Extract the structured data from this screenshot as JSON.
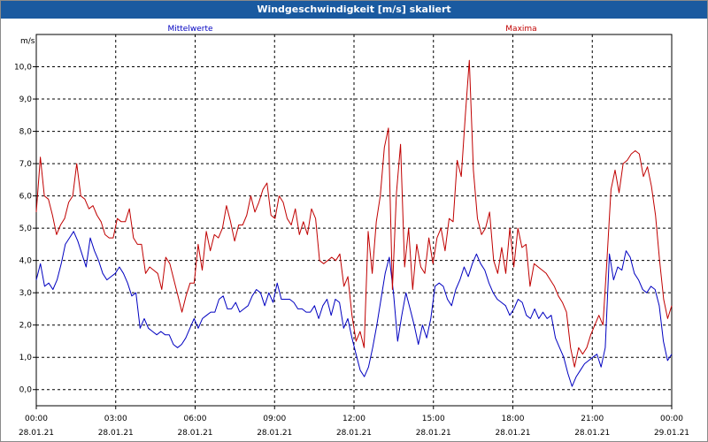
{
  "window": {
    "title": "Windgeschwindigkeit [m/s] skaliert"
  },
  "chart_data": {
    "type": "line",
    "title": "Windgeschwindigkeit [m/s] skaliert",
    "ylabel": "m/s",
    "xlabel": "",
    "ylim": [
      -0.5,
      11.0
    ],
    "xlim": [
      0,
      24
    ],
    "grid": true,
    "y_ticks": [
      0.0,
      1.0,
      2.0,
      3.0,
      4.0,
      5.0,
      6.0,
      7.0,
      8.0,
      9.0,
      10.0
    ],
    "y_tick_labels": [
      "0,0",
      "1,0",
      "2,0",
      "3,0",
      "4,0",
      "5,0",
      "6,0",
      "7,0",
      "8,0",
      "9,0",
      "10,0"
    ],
    "x_ticks": [
      {
        "hours": 0,
        "time": "00:00",
        "date": "28.01.21"
      },
      {
        "hours": 3,
        "time": "03:00",
        "date": "28.01.21"
      },
      {
        "hours": 6,
        "time": "06:00",
        "date": "28.01.21"
      },
      {
        "hours": 9,
        "time": "09:00",
        "date": "28.01.21"
      },
      {
        "hours": 12,
        "time": "12:00",
        "date": "28.01.21"
      },
      {
        "hours": 15,
        "time": "15:00",
        "date": "28.01.21"
      },
      {
        "hours": 18,
        "time": "18:00",
        "date": "28.01.21"
      },
      {
        "hours": 21,
        "time": "21:00",
        "date": "28.01.21"
      },
      {
        "hours": 24,
        "time": "00:00",
        "date": "29.01.21"
      }
    ],
    "series": [
      {
        "name": "Mittelwerte",
        "color": "#0000c0",
        "values": [
          3.4,
          3.9,
          3.2,
          3.3,
          3.1,
          3.4,
          3.9,
          4.5,
          4.7,
          4.9,
          4.6,
          4.2,
          3.8,
          4.7,
          4.3,
          4.0,
          3.6,
          3.4,
          3.5,
          3.6,
          3.8,
          3.6,
          3.3,
          2.9,
          3.0,
          1.9,
          2.2,
          1.9,
          1.8,
          1.7,
          1.8,
          1.7,
          1.7,
          1.4,
          1.3,
          1.4,
          1.6,
          1.9,
          2.2,
          1.9,
          2.2,
          2.3,
          2.4,
          2.4,
          2.8,
          2.9,
          2.5,
          2.5,
          2.7,
          2.4,
          2.5,
          2.6,
          2.9,
          3.1,
          3.0,
          2.6,
          3.0,
          2.7,
          3.3,
          2.8,
          2.8,
          2.8,
          2.7,
          2.5,
          2.5,
          2.4,
          2.4,
          2.6,
          2.2,
          2.6,
          2.8,
          2.3,
          2.8,
          2.7,
          1.9,
          2.2,
          1.6,
          1.1,
          0.6,
          0.4,
          0.7,
          1.3,
          2.0,
          2.8,
          3.6,
          4.1,
          3.0,
          1.5,
          2.3,
          3.0,
          2.5,
          2.0,
          1.4,
          2.0,
          1.6,
          2.2,
          3.2,
          3.3,
          3.2,
          2.8,
          2.6,
          3.1,
          3.4,
          3.8,
          3.5,
          3.9,
          4.2,
          3.9,
          3.7,
          3.3,
          3.0,
          2.8,
          2.7,
          2.6,
          2.3,
          2.5,
          2.8,
          2.7,
          2.3,
          2.2,
          2.5,
          2.2,
          2.4,
          2.2,
          2.3,
          1.6,
          1.3,
          1.0,
          0.5,
          0.1,
          0.4,
          0.6,
          0.8,
          0.9,
          1.0,
          1.1,
          0.7,
          1.3,
          4.2,
          3.4,
          3.8,
          3.7,
          4.3,
          4.1,
          3.6,
          3.4,
          3.1,
          3.0,
          3.2,
          3.1,
          2.6,
          1.5,
          0.9,
          1.1
        ]
      },
      {
        "name": "Maxima",
        "color": "#c00000",
        "values": [
          5.5,
          7.2,
          6.0,
          5.9,
          5.4,
          4.8,
          5.1,
          5.3,
          5.8,
          6.0,
          7.0,
          6.0,
          5.9,
          5.6,
          5.7,
          5.4,
          5.2,
          4.8,
          4.7,
          4.7,
          5.3,
          5.2,
          5.2,
          5.6,
          4.7,
          4.5,
          4.5,
          3.6,
          3.8,
          3.7,
          3.6,
          3.1,
          4.1,
          3.9,
          3.4,
          2.9,
          2.4,
          2.9,
          3.3,
          3.3,
          4.5,
          3.7,
          4.9,
          4.3,
          4.8,
          4.7,
          5.0,
          5.7,
          5.2,
          4.6,
          5.1,
          5.1,
          5.4,
          6.0,
          5.5,
          5.8,
          6.2,
          6.4,
          5.4,
          5.3,
          6.0,
          5.8,
          5.3,
          5.1,
          5.6,
          4.8,
          5.2,
          4.8,
          5.6,
          5.3,
          4.0,
          3.9,
          4.0,
          4.1,
          4.0,
          4.2,
          3.2,
          3.5,
          2.3,
          1.5,
          1.8,
          1.3,
          4.9,
          3.6,
          5.2,
          6.0,
          7.5,
          8.1,
          3.1,
          6.1,
          7.6,
          3.8,
          5.0,
          3.1,
          4.5,
          3.8,
          3.6,
          4.7,
          3.9,
          4.7,
          5.0,
          4.3,
          5.3,
          5.2,
          7.1,
          6.6,
          8.5,
          10.2,
          6.8,
          5.3,
          4.8,
          5.0,
          5.5,
          4.0,
          3.6,
          4.4,
          3.6,
          5.0,
          3.8,
          5.0,
          4.4,
          4.5,
          3.2,
          3.9,
          3.8,
          3.7,
          3.6,
          3.4,
          3.2,
          2.9,
          2.7,
          2.4,
          1.3,
          0.7,
          1.3,
          1.1,
          1.3,
          1.7,
          2.0,
          2.3,
          2.0,
          4.0,
          6.2,
          6.8,
          6.1,
          7.0,
          7.1,
          7.3,
          7.4,
          7.3,
          6.6,
          6.9,
          6.3,
          5.4,
          4.0,
          2.8,
          2.2,
          2.6
        ]
      }
    ]
  }
}
